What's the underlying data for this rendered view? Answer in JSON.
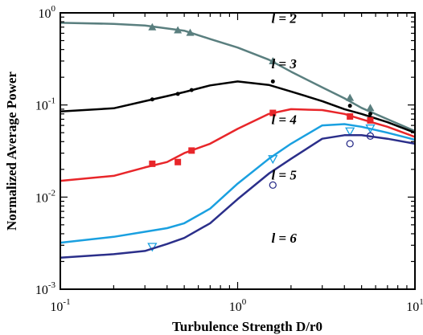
{
  "chart_data": {
    "type": "line",
    "title": "",
    "xlabel": "Turbulence Strength D/r0",
    "ylabel": "Normalized Average Power",
    "xscale": "log",
    "yscale": "log",
    "xlim": [
      0.1,
      10
    ],
    "ylim": [
      0.001,
      1
    ],
    "x_ticks": [
      {
        "value": 0.1,
        "base": "10",
        "exp": "-1"
      },
      {
        "value": 1,
        "base": "10",
        "exp": "0"
      },
      {
        "value": 10,
        "base": "10",
        "exp": "1"
      }
    ],
    "y_ticks": [
      {
        "value": 0.001,
        "base": "10",
        "exp": "-3"
      },
      {
        "value": 0.01,
        "base": "10",
        "exp": "-2"
      },
      {
        "value": 0.1,
        "base": "10",
        "exp": "-1"
      },
      {
        "value": 1,
        "base": "10",
        "exp": "0"
      }
    ],
    "grid": false,
    "series": [
      {
        "name": "l = 2",
        "label": "l = 2",
        "label_at": [
          1.55,
          0.78
        ],
        "color": "#5a7f7f",
        "marker": "triangle",
        "line": {
          "x": [
            0.1,
            0.2,
            0.3,
            0.5,
            0.7,
            1.0,
            1.5,
            2.0,
            3.0,
            4.0,
            5.0,
            7.0,
            10.0
          ],
          "y": [
            0.78,
            0.76,
            0.73,
            0.64,
            0.52,
            0.42,
            0.31,
            0.23,
            0.155,
            0.118,
            0.093,
            0.07,
            0.052
          ]
        },
        "points": {
          "x": [
            0.33,
            0.46,
            0.54,
            1.58,
            4.3,
            5.6
          ],
          "y": [
            0.7,
            0.65,
            0.61,
            0.3,
            0.12,
            0.093
          ]
        }
      },
      {
        "name": "l = 3",
        "label": "l = 3",
        "label_at": [
          1.55,
          0.25
        ],
        "color": "#000000",
        "marker": "dot",
        "line": {
          "x": [
            0.1,
            0.2,
            0.3,
            0.4,
            0.5,
            0.7,
            1.0,
            1.5,
            2.0,
            3.0,
            4.0,
            5.0,
            7.0,
            10.0
          ],
          "y": [
            0.085,
            0.092,
            0.11,
            0.125,
            0.138,
            0.163,
            0.18,
            0.165,
            0.14,
            0.11,
            0.09,
            0.08,
            0.065,
            0.05
          ]
        },
        "points": {
          "x": [
            0.33,
            0.46,
            0.55,
            1.58,
            4.3,
            5.6
          ],
          "y": [
            0.115,
            0.132,
            0.145,
            0.18,
            0.098,
            0.08
          ]
        }
      },
      {
        "name": "l = 4",
        "label": "l = 4",
        "label_at": [
          1.55,
          0.062
        ],
        "color": "#e8262a",
        "marker": "square",
        "line": {
          "x": [
            0.1,
            0.2,
            0.3,
            0.4,
            0.5,
            0.7,
            1.0,
            1.5,
            2.0,
            3.0,
            4.0,
            5.0,
            7.0,
            10.0
          ],
          "y": [
            0.015,
            0.017,
            0.021,
            0.024,
            0.03,
            0.038,
            0.055,
            0.08,
            0.09,
            0.088,
            0.08,
            0.07,
            0.058,
            0.045
          ]
        },
        "points": {
          "x": [
            0.33,
            0.46,
            0.55,
            1.58,
            4.3,
            5.6
          ],
          "y": [
            0.023,
            0.024,
            0.032,
            0.082,
            0.075,
            0.068
          ]
        }
      },
      {
        "name": "l = 5",
        "label": "l = 5",
        "label_at": [
          1.55,
          0.0155
        ],
        "color": "#1aa0e0",
        "marker": "triangle-down",
        "line": {
          "x": [
            0.1,
            0.2,
            0.3,
            0.4,
            0.5,
            0.7,
            1.0,
            1.5,
            2.0,
            3.0,
            4.0,
            5.0,
            7.0,
            10.0
          ],
          "y": [
            0.0032,
            0.0037,
            0.0042,
            0.0046,
            0.0052,
            0.0075,
            0.014,
            0.026,
            0.038,
            0.06,
            0.062,
            0.058,
            0.05,
            0.042
          ]
        },
        "points": {
          "x": [
            0.33,
            1.58,
            4.3,
            5.6
          ],
          "y": [
            0.0029,
            0.026,
            0.052,
            0.056
          ]
        }
      },
      {
        "name": "l = 6",
        "label": "l = 6",
        "label_at": [
          1.55,
          0.0032
        ],
        "color": "#2b2f8a",
        "marker": "circle",
        "line": {
          "x": [
            0.1,
            0.2,
            0.3,
            0.4,
            0.5,
            0.7,
            1.0,
            1.5,
            2.0,
            3.0,
            4.0,
            5.0,
            7.0,
            10.0
          ],
          "y": [
            0.0022,
            0.0024,
            0.0026,
            0.0031,
            0.0036,
            0.0052,
            0.0095,
            0.018,
            0.026,
            0.043,
            0.047,
            0.047,
            0.043,
            0.038
          ]
        },
        "points": {
          "x": [
            1.58,
            4.3,
            5.6
          ],
          "y": [
            0.0135,
            0.038,
            0.046
          ]
        }
      }
    ]
  }
}
